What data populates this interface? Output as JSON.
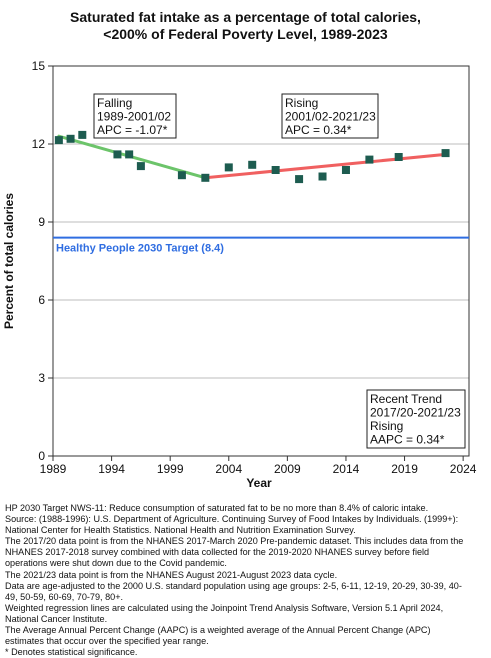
{
  "title_lines": [
    "Saturated fat intake as a percentage of total calories,",
    "<200% of Federal Poverty Level,  1989-2023"
  ],
  "colors": {
    "falling": "#6cc46a",
    "rising": "#f06060",
    "target": "#2f6de1",
    "marker": "#1d5c50",
    "grid": "#bdbdbd"
  },
  "chart_data": {
    "type": "scatter",
    "title": "Saturated fat intake as a percentage of total calories, <200% of Federal Poverty Level,  1989-2023",
    "xlabel": "Year",
    "ylabel": "Percent of total calories",
    "xlim": [
      1989,
      2024.5
    ],
    "ylim": [
      0,
      15
    ],
    "xticks": [
      1989,
      1994,
      1999,
      2004,
      2009,
      2014,
      2019,
      2024
    ],
    "yticks": [
      0,
      3,
      6,
      9,
      12,
      15
    ],
    "grid": true,
    "points": [
      {
        "x": 1989.5,
        "y": 12.15
      },
      {
        "x": 1990.5,
        "y": 12.2
      },
      {
        "x": 1991.5,
        "y": 12.35
      },
      {
        "x": 1994.5,
        "y": 11.6
      },
      {
        "x": 1995.5,
        "y": 11.6
      },
      {
        "x": 1996.5,
        "y": 11.15
      },
      {
        "x": 2000,
        "y": 10.8
      },
      {
        "x": 2002,
        "y": 10.7
      },
      {
        "x": 2004,
        "y": 11.1
      },
      {
        "x": 2006,
        "y": 11.2
      },
      {
        "x": 2008,
        "y": 11.0
      },
      {
        "x": 2010,
        "y": 10.65
      },
      {
        "x": 2012,
        "y": 10.75
      },
      {
        "x": 2014,
        "y": 11.0
      },
      {
        "x": 2016,
        "y": 11.4
      },
      {
        "x": 2018.5,
        "y": 11.5
      },
      {
        "x": 2022.5,
        "y": 11.65
      }
    ],
    "trend_lines": [
      {
        "name": "Falling",
        "x": [
          1989.5,
          2002
        ],
        "y": [
          12.3,
          10.7
        ]
      },
      {
        "name": "Rising",
        "x": [
          2002,
          2022.5
        ],
        "y": [
          10.7,
          11.6
        ]
      }
    ],
    "target_line": {
      "y": 8.4,
      "label": "Healthy People 2030 Target (8.4)"
    },
    "annotations": [
      {
        "name": "falling",
        "lines": [
          "Falling",
          "1989-2001/02",
          "APC = -1.07*"
        ]
      },
      {
        "name": "rising",
        "lines": [
          "Rising",
          "2001/02-2021/23",
          "APC =  0.34*"
        ]
      },
      {
        "name": "recent-trend",
        "lines": [
          "Recent Trend",
          "2017/20-2021/23",
          "Rising",
          "AAPC =  0.34*"
        ]
      }
    ]
  },
  "footnotes": [
    "HP 2030 Target NWS-11: Reduce consumption of saturated fat to be no more than 8.4% of caloric intake.",
    "Source: (1988-1996): U.S. Department of Agriculture. Continuing Survey of Food Intakes by Individuals. (1999+):",
    "National Center for Health Statistics. National Health and Nutrition Examination Survey.",
    "The 2017/20 data point is from the NHANES 2017-March 2020 Pre-pandemic dataset. This includes data from the",
    "NHANES 2017-2018 survey combined with data collected for the 2019-2020 NHANES survey before field",
    "operations were shut down due to the Covid pandemic.",
    "The 2021/23 data point is from the NHANES August 2021-August 2023 data cycle.",
    "Data are age-adjusted to the 2000 U.S. standard population using age groups: 2-5, 6-11, 12-19, 20-29, 30-39, 40-",
    "49, 50-59, 60-69, 70-79, 80+.",
    "Weighted regression lines are calculated using the Joinpoint Trend Analysis Software, Version 5.1 April 2024,",
    "National Cancer Institute.",
    "The Average Annual Percent Change (AAPC) is a weighted average of the Annual Percent Change (APC)",
    "estimates that occur over the specified year range.",
    "* Denotes statistical significance."
  ]
}
